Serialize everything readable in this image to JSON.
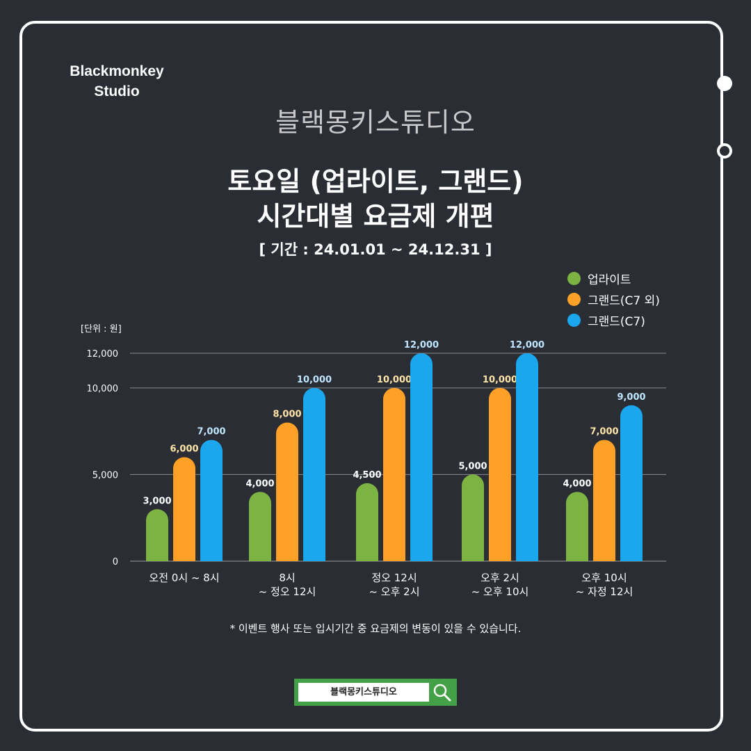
{
  "logo": {
    "line1": "Blackmonkey",
    "line2": "Studio"
  },
  "brand_name": "블랙몽키스튜디오",
  "title": {
    "line1": "토요일 (업라이트, 그랜드)",
    "line2": "시간대별 요금제 개편"
  },
  "period": "[ 기간 : 24.01.01 ~ 24.12.31 ]",
  "unit_label": "[단위 : 원]",
  "note": "* 이벤트 행사 또는 입시기간 중 요금제의 변동이 있을 수 있습니다.",
  "search": {
    "text": "블랙몽키스튜디오",
    "icon": "search-icon"
  },
  "chart_data": {
    "type": "bar",
    "categories": [
      [
        "오전 0시 ~ 8시"
      ],
      [
        "8시",
        "~ 정오 12시"
      ],
      [
        "정오 12시",
        "~ 오후 2시"
      ],
      [
        "오후 2시",
        "~ 오후 10시"
      ],
      [
        "오후 10시",
        "~ 자정 12시"
      ]
    ],
    "series": [
      {
        "name": "업라이트",
        "color": "#7cb342",
        "label_color": "#ffffff",
        "values": [
          3000,
          4000,
          4500,
          5000,
          4000
        ]
      },
      {
        "name": "그랜드(C7 외)",
        "color": "#ffa027",
        "label_color": "#ffe4a8",
        "values": [
          6000,
          8000,
          10000,
          10000,
          7000
        ]
      },
      {
        "name": "그랜드(C7)",
        "color": "#1aa7ee",
        "label_color": "#bfe6ff",
        "values": [
          7000,
          10000,
          12000,
          12000,
          9000
        ]
      }
    ],
    "yticks": [
      "0",
      "5,000",
      "10,000",
      "12,000"
    ],
    "ytick_values": [
      0,
      5000,
      10000,
      12000
    ],
    "ylim": [
      0,
      12000
    ],
    "grid": true,
    "legend": "top-right",
    "ylabel": "[단위 : 원]"
  }
}
